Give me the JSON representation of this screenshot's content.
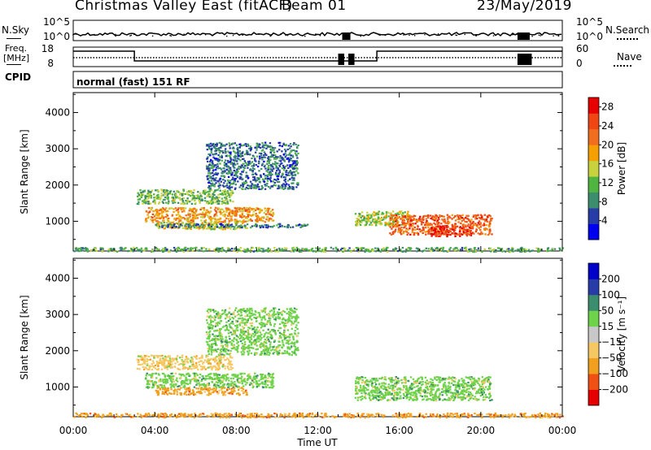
{
  "header": {
    "station": "Christmas Valley East (fitACF)",
    "beam": "Beam 01",
    "date": "23/May/2019"
  },
  "top_panels": {
    "nsky_label": "N.Sky",
    "nsearch_label": "N.Search",
    "nsky_ticks": [
      "10^5",
      "10^0"
    ],
    "freq_label_1": "Freq.",
    "freq_label_2": "[MHz]",
    "freq_ticks": [
      "18",
      "8"
    ],
    "nave_label": "Nave",
    "nave_ticks": [
      "60",
      "0"
    ],
    "cpid_label": "CPID",
    "cpid_value": "normal (fast) 151 RF"
  },
  "x_axis": {
    "label": "Time UT",
    "ticks": [
      "00:00",
      "04:00",
      "08:00",
      "12:00",
      "16:00",
      "20:00",
      "00:00"
    ]
  },
  "colors": {
    "power_scale": [
      "#0000f0",
      "#283ca8",
      "#3c8c6e",
      "#50b440",
      "#c8d23c",
      "#f5a000",
      "#f06e1e",
      "#f04614",
      "#e60000"
    ],
    "velocity_scale": [
      "#e60000",
      "#f05014",
      "#f0a01e",
      "#f5c864",
      "#c8c8c8",
      "#6ed24a",
      "#3c8c6e",
      "#283ca8",
      "#0000c8"
    ]
  },
  "chart_data": [
    {
      "type": "heatmap",
      "title": "Power",
      "ylabel": "Slant Range [km]",
      "xlabel": "",
      "xlim": [
        0,
        24
      ],
      "ylim": [
        180,
        4550
      ],
      "y_ticks": [
        1000,
        2000,
        3000,
        4000
      ],
      "colorbar_label": "Power [dB]",
      "colorbar_ticks": [
        4,
        8,
        12,
        16,
        20,
        24,
        28
      ],
      "colorbar_range": [
        0,
        30
      ],
      "regions": [
        {
          "t0": 3.1,
          "t1": 7.8,
          "r0": 1500,
          "r1": 1900,
          "level": 12
        },
        {
          "t0": 3.5,
          "t1": 9.8,
          "r0": 1000,
          "r1": 1400,
          "level": 20
        },
        {
          "t0": 4.0,
          "t1": 8.5,
          "r0": 800,
          "r1": 1000,
          "level": 16
        },
        {
          "t0": 4.0,
          "t1": 11.5,
          "r0": 850,
          "r1": 950,
          "level": 6
        },
        {
          "t0": 6.5,
          "t1": 11.0,
          "r0": 1900,
          "r1": 3200,
          "level": 6
        },
        {
          "t0": 13.8,
          "t1": 16.5,
          "r0": 900,
          "r1": 1300,
          "level": 14
        },
        {
          "t0": 15.5,
          "t1": 20.5,
          "r0": 650,
          "r1": 1200,
          "level": 24
        },
        {
          "t0": 17.5,
          "t1": 19.5,
          "r0": 600,
          "r1": 900,
          "level": 28
        },
        {
          "t0": 0.0,
          "t1": 24.0,
          "r0": 180,
          "r1": 300,
          "level": 10
        }
      ]
    },
    {
      "type": "heatmap",
      "title": "Velocity",
      "ylabel": "Slant Range [km]",
      "xlabel": "Time UT",
      "xlim": [
        0,
        24
      ],
      "ylim": [
        180,
        4550
      ],
      "y_ticks": [
        1000,
        2000,
        3000,
        4000
      ],
      "colorbar_label": "Velocity [m s⁻¹]",
      "colorbar_ticks": [
        "−200",
        "−100",
        "−50",
        "−15",
        "15",
        "50",
        "100",
        "200"
      ],
      "regions": [
        {
          "t0": 3.1,
          "t1": 7.8,
          "r0": 1500,
          "r1": 1900,
          "level": "-15"
        },
        {
          "t0": 3.5,
          "t1": 9.8,
          "r0": 1000,
          "r1": 1400,
          "level": "15"
        },
        {
          "t0": 4.0,
          "t1": 8.5,
          "r0": 800,
          "r1": 1000,
          "level": "-50"
        },
        {
          "t0": 6.5,
          "t1": 11.0,
          "r0": 1900,
          "r1": 3200,
          "level": "15"
        },
        {
          "t0": 13.8,
          "t1": 20.5,
          "r0": 650,
          "r1": 1300,
          "level": "15"
        },
        {
          "t0": 0.0,
          "t1": 24.0,
          "r0": 180,
          "r1": 300,
          "level": "-50"
        }
      ]
    }
  ]
}
